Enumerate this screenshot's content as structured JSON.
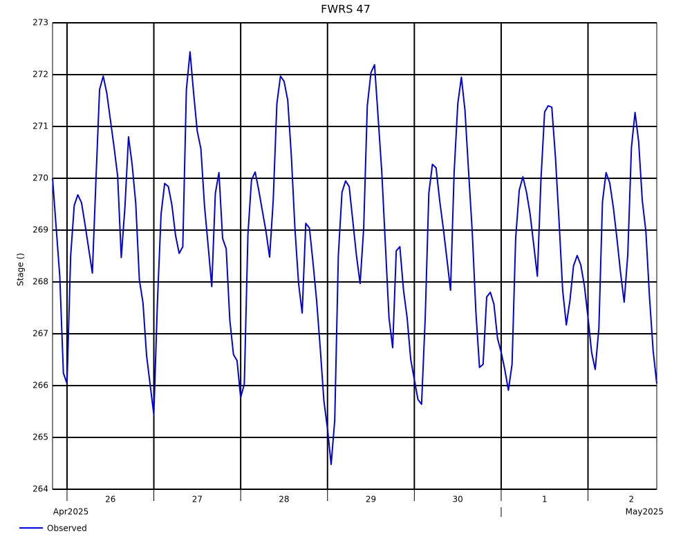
{
  "chart_data": {
    "type": "line",
    "title": "FWRS 47",
    "y_label": "Stage ()",
    "x": [
      "2025-04-25T20:00",
      "2025-04-25T22:00",
      "2025-04-25T23:00",
      "2025-04-26T00:00",
      "2025-04-26T01:00",
      "2025-04-26T02:00",
      "2025-04-26T03:00",
      "2025-04-26T04:00",
      "2025-04-26T05:00",
      "2025-04-26T07:00",
      "2025-04-26T08:00",
      "2025-04-26T09:00",
      "2025-04-26T10:00",
      "2025-04-26T11:00",
      "2025-04-26T13:00",
      "2025-04-26T14:00",
      "2025-04-26T15:00",
      "2025-04-26T16:00",
      "2025-04-26T17:00",
      "2025-04-26T18:00",
      "2025-04-26T19:00",
      "2025-04-26T20:00",
      "2025-04-26T21:00",
      "2025-04-26T22:00",
      "2025-04-27T00:00",
      "2025-04-27T01:00",
      "2025-04-27T02:00",
      "2025-04-27T03:00",
      "2025-04-27T04:00",
      "2025-04-27T05:00",
      "2025-04-27T06:00",
      "2025-04-27T07:00",
      "2025-04-27T08:00",
      "2025-04-27T09:00",
      "2025-04-27T10:00",
      "2025-04-27T11:00",
      "2025-04-27T12:00",
      "2025-04-27T13:00",
      "2025-04-27T14:00",
      "2025-04-27T15:00",
      "2025-04-27T16:00",
      "2025-04-27T17:00",
      "2025-04-27T18:00",
      "2025-04-27T19:00",
      "2025-04-27T20:00",
      "2025-04-27T21:00",
      "2025-04-27T22:00",
      "2025-04-27T23:00",
      "2025-04-28T00:00",
      "2025-04-28T01:00",
      "2025-04-28T02:00",
      "2025-04-28T03:00",
      "2025-04-28T04:00",
      "2025-04-28T05:00",
      "2025-04-28T06:00",
      "2025-04-28T07:00",
      "2025-04-28T08:00",
      "2025-04-28T09:00",
      "2025-04-28T10:00",
      "2025-04-28T11:00",
      "2025-04-28T12:00",
      "2025-04-28T13:00",
      "2025-04-28T14:00",
      "2025-04-28T15:00",
      "2025-04-28T16:00",
      "2025-04-28T17:00",
      "2025-04-28T18:00",
      "2025-04-28T19:00",
      "2025-04-28T20:00",
      "2025-04-28T21:00",
      "2025-04-28T22:00",
      "2025-04-28T23:00",
      "2025-04-29T00:00",
      "2025-04-29T01:00",
      "2025-04-29T02:00",
      "2025-04-29T03:00",
      "2025-04-29T04:00",
      "2025-04-29T05:00",
      "2025-04-29T06:00",
      "2025-04-29T07:00",
      "2025-04-29T08:00",
      "2025-04-29T09:00",
      "2025-04-29T10:00",
      "2025-04-29T11:00",
      "2025-04-29T12:00",
      "2025-04-29T13:00",
      "2025-04-29T14:00",
      "2025-04-29T15:00",
      "2025-04-29T16:00",
      "2025-04-29T17:00",
      "2025-04-29T18:00",
      "2025-04-29T19:00",
      "2025-04-29T20:00",
      "2025-04-29T21:00",
      "2025-04-29T22:00",
      "2025-04-29T23:00",
      "2025-04-30T00:00",
      "2025-04-30T01:00",
      "2025-04-30T02:00",
      "2025-04-30T03:00",
      "2025-04-30T04:00",
      "2025-04-30T05:00",
      "2025-04-30T06:00",
      "2025-04-30T07:00",
      "2025-04-30T08:00",
      "2025-04-30T09:00",
      "2025-04-30T10:00",
      "2025-04-30T11:00",
      "2025-04-30T12:00",
      "2025-04-30T13:00",
      "2025-04-30T14:00",
      "2025-04-30T15:00",
      "2025-04-30T16:00",
      "2025-04-30T17:00",
      "2025-04-30T18:00",
      "2025-04-30T19:00",
      "2025-04-30T20:00",
      "2025-04-30T21:00",
      "2025-04-30T22:00",
      "2025-04-30T23:00",
      "2025-05-01T00:00",
      "2025-05-01T01:00",
      "2025-05-01T02:00",
      "2025-05-01T03:00",
      "2025-05-01T04:00",
      "2025-05-01T05:00",
      "2025-05-01T06:00",
      "2025-05-01T07:00",
      "2025-05-01T08:00",
      "2025-05-01T09:00",
      "2025-05-01T10:00",
      "2025-05-01T11:00",
      "2025-05-01T12:00",
      "2025-05-01T13:00",
      "2025-05-01T14:00",
      "2025-05-01T15:00",
      "2025-05-01T16:00",
      "2025-05-01T17:00",
      "2025-05-01T18:00",
      "2025-05-01T19:00",
      "2025-05-01T20:00",
      "2025-05-01T21:00",
      "2025-05-01T22:00",
      "2025-05-01T23:00",
      "2025-05-02T00:00",
      "2025-05-02T01:00",
      "2025-05-02T02:00",
      "2025-05-02T03:00",
      "2025-05-02T04:00",
      "2025-05-02T05:00",
      "2025-05-02T06:00",
      "2025-05-02T07:00",
      "2025-05-02T08:00",
      "2025-05-02T09:00",
      "2025-05-02T10:00",
      "2025-05-02T11:00",
      "2025-05-02T12:00",
      "2025-05-02T13:00",
      "2025-05-02T14:00",
      "2025-05-02T15:00",
      "2025-05-02T16:00",
      "2025-05-02T17:00",
      "2025-05-02T18:00",
      "2025-05-02T19:00"
    ],
    "series": [
      {
        "name": "Observed",
        "color": "#0000dd",
        "values": [
          270.0,
          268.1,
          266.24,
          266.04,
          268.5,
          269.48,
          269.68,
          269.53,
          269.1,
          268.17,
          269.97,
          271.71,
          271.97,
          271.64,
          270.6,
          270.04,
          268.47,
          269.44,
          270.8,
          270.27,
          269.51,
          268.04,
          267.6,
          266.57,
          265.44,
          267.64,
          269.31,
          269.9,
          269.84,
          269.48,
          268.9,
          268.55,
          268.68,
          271.71,
          272.44,
          271.64,
          270.91,
          270.57,
          269.47,
          268.71,
          267.91,
          269.71,
          270.11,
          268.84,
          268.64,
          267.27,
          266.6,
          266.48,
          265.77,
          266.03,
          268.91,
          269.97,
          270.12,
          269.77,
          269.37,
          268.97,
          268.48,
          269.57,
          271.44,
          271.97,
          271.87,
          271.51,
          270.44,
          269.04,
          267.97,
          267.4,
          269.13,
          269.04,
          268.37,
          267.64,
          266.71,
          265.71,
          265.17,
          264.48,
          265.33,
          268.51,
          269.73,
          269.95,
          269.84,
          269.17,
          268.51,
          267.97,
          269.04,
          271.4,
          272.04,
          272.19,
          271.17,
          270.11,
          268.71,
          267.31,
          266.73,
          268.6,
          268.68,
          267.84,
          267.31,
          266.51,
          266.11,
          265.73,
          265.64,
          267.31,
          269.71,
          270.27,
          270.2,
          269.57,
          269.04,
          268.44,
          267.84,
          270.11,
          271.44,
          271.95,
          271.31,
          270.11,
          268.97,
          267.44,
          266.35,
          266.41,
          267.71,
          267.8,
          267.57,
          266.91,
          266.64,
          266.31,
          265.91,
          266.41,
          268.84,
          269.77,
          270.03,
          269.73,
          269.31,
          268.71,
          268.11,
          269.97,
          271.28,
          271.4,
          271.37,
          270.4,
          269.17,
          267.84,
          267.17,
          267.64,
          268.31,
          268.51,
          268.33,
          267.93,
          267.31,
          266.64,
          266.31,
          267.11,
          269.55,
          270.11,
          269.91,
          269.44,
          268.84,
          268.17,
          267.61,
          268.53,
          270.6,
          271.27,
          270.71,
          269.57,
          268.97,
          267.71,
          266.67,
          266.04
        ]
      }
    ],
    "xlim": [
      "2025-04-25T20:00",
      "2025-05-02T19:00"
    ],
    "xticks": [
      {
        "value": "2025-04-26T00:00",
        "label": "26"
      },
      {
        "value": "2025-04-27T00:00",
        "label": "27"
      },
      {
        "value": "2025-04-28T00:00",
        "label": "28"
      },
      {
        "value": "2025-04-29T00:00",
        "label": "29"
      },
      {
        "value": "2025-04-30T00:00",
        "label": "30"
      },
      {
        "value": "2025-05-01T00:00",
        "label": "1"
      },
      {
        "value": "2025-05-02T00:00",
        "label": "2"
      }
    ],
    "month_labels": [
      {
        "value": "2025-04-26T00:00",
        "label": "Apr2025"
      },
      {
        "value": "2025-05-01T00:00",
        "label": "May2025"
      }
    ],
    "ylim": [
      264,
      273
    ],
    "yticks": [
      264,
      265,
      266,
      267,
      268,
      269,
      270,
      271,
      272,
      273
    ],
    "grid": true,
    "legend": "bottom-left"
  }
}
